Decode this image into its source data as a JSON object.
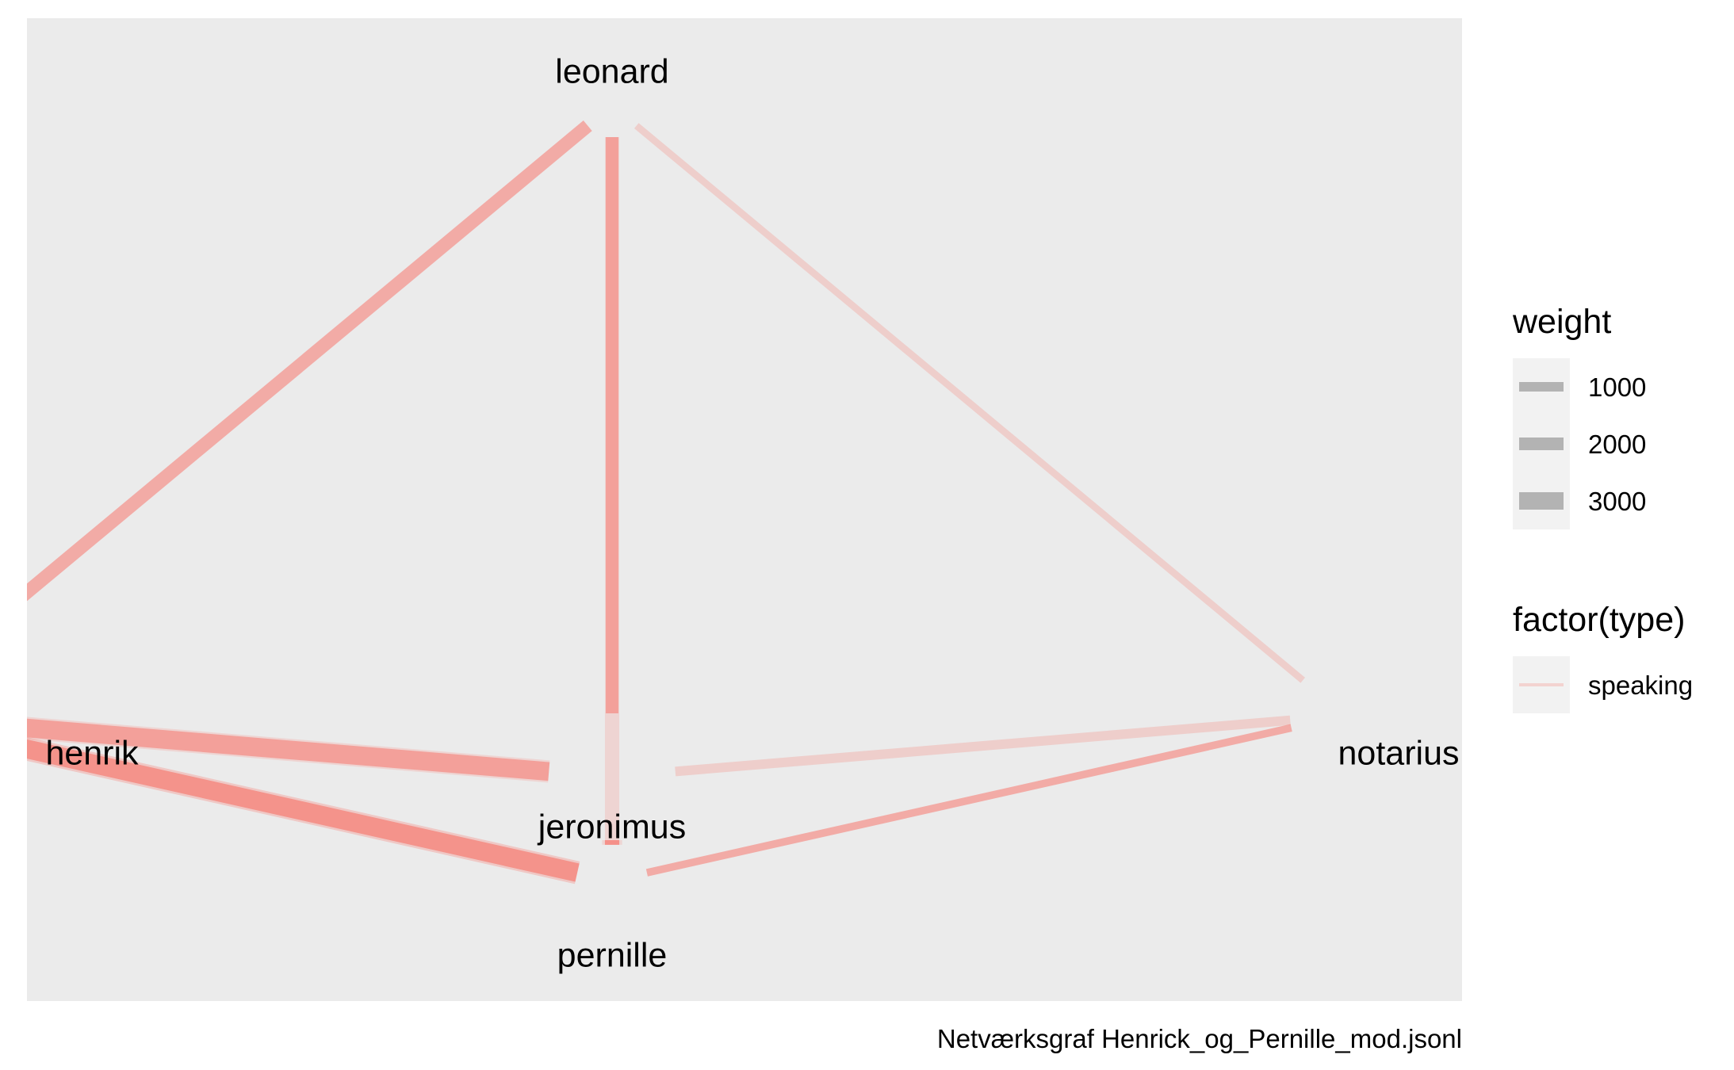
{
  "nodes": [
    {
      "id": "leonard",
      "label": "leonard",
      "x": 0.0,
      "y": 1.0
    },
    {
      "id": "henrik",
      "label": "henrik",
      "x": -1.0,
      "y": 0.0
    },
    {
      "id": "notarius",
      "label": "notarius",
      "x": 1.0,
      "y": 0.0
    },
    {
      "id": "jeronimus",
      "label": "jeronimus",
      "x": 0.0,
      "y": -0.1
    },
    {
      "id": "pernille",
      "label": "pernille",
      "x": 0.0,
      "y": -0.27
    }
  ],
  "edges": [
    {
      "from": "leonard",
      "to": "henrik",
      "weight": 2000,
      "alpha": 0.55
    },
    {
      "from": "leonard",
      "to": "jeronimus",
      "weight": 1800,
      "alpha": 0.55
    },
    {
      "from": "leonard",
      "to": "pernille",
      "weight": 2200,
      "alpha": 0.2
    },
    {
      "from": "leonard",
      "to": "notarius",
      "weight": 500,
      "alpha": 0.25
    },
    {
      "from": "henrik",
      "to": "jeronimus",
      "weight": 3200,
      "alpha": 0.55
    },
    {
      "from": "henrik",
      "to": "jeronimus",
      "weight": 4000,
      "alpha": 0.2
    },
    {
      "from": "henrik",
      "to": "pernille",
      "weight": 3200,
      "alpha": 0.65
    },
    {
      "from": "henrik",
      "to": "pernille",
      "weight": 4200,
      "alpha": 0.3
    },
    {
      "from": "pernille",
      "to": "jeronimus",
      "weight": 2200,
      "alpha": 0.65
    },
    {
      "from": "pernille",
      "to": "jeronimus",
      "weight": 3500,
      "alpha": 0.2
    },
    {
      "from": "jeronimus",
      "to": "notarius",
      "weight": 1100,
      "alpha": 0.25
    },
    {
      "from": "pernille",
      "to": "notarius",
      "weight": 650,
      "alpha": 0.55
    }
  ],
  "edge_color": "#f8766d",
  "panel_color": "#ebebeb",
  "legend": {
    "weight_title": "weight",
    "weight_items": [
      {
        "label": "1000",
        "value": 1000
      },
      {
        "label": "2000",
        "value": 2000
      },
      {
        "label": "3000",
        "value": 3000
      }
    ],
    "type_title": "factor(type)",
    "type_items": [
      {
        "label": "speaking",
        "color": "#f8766d"
      }
    ]
  },
  "caption": "Netværksgraf Henrick_og_Pernille_mod.jsonl"
}
